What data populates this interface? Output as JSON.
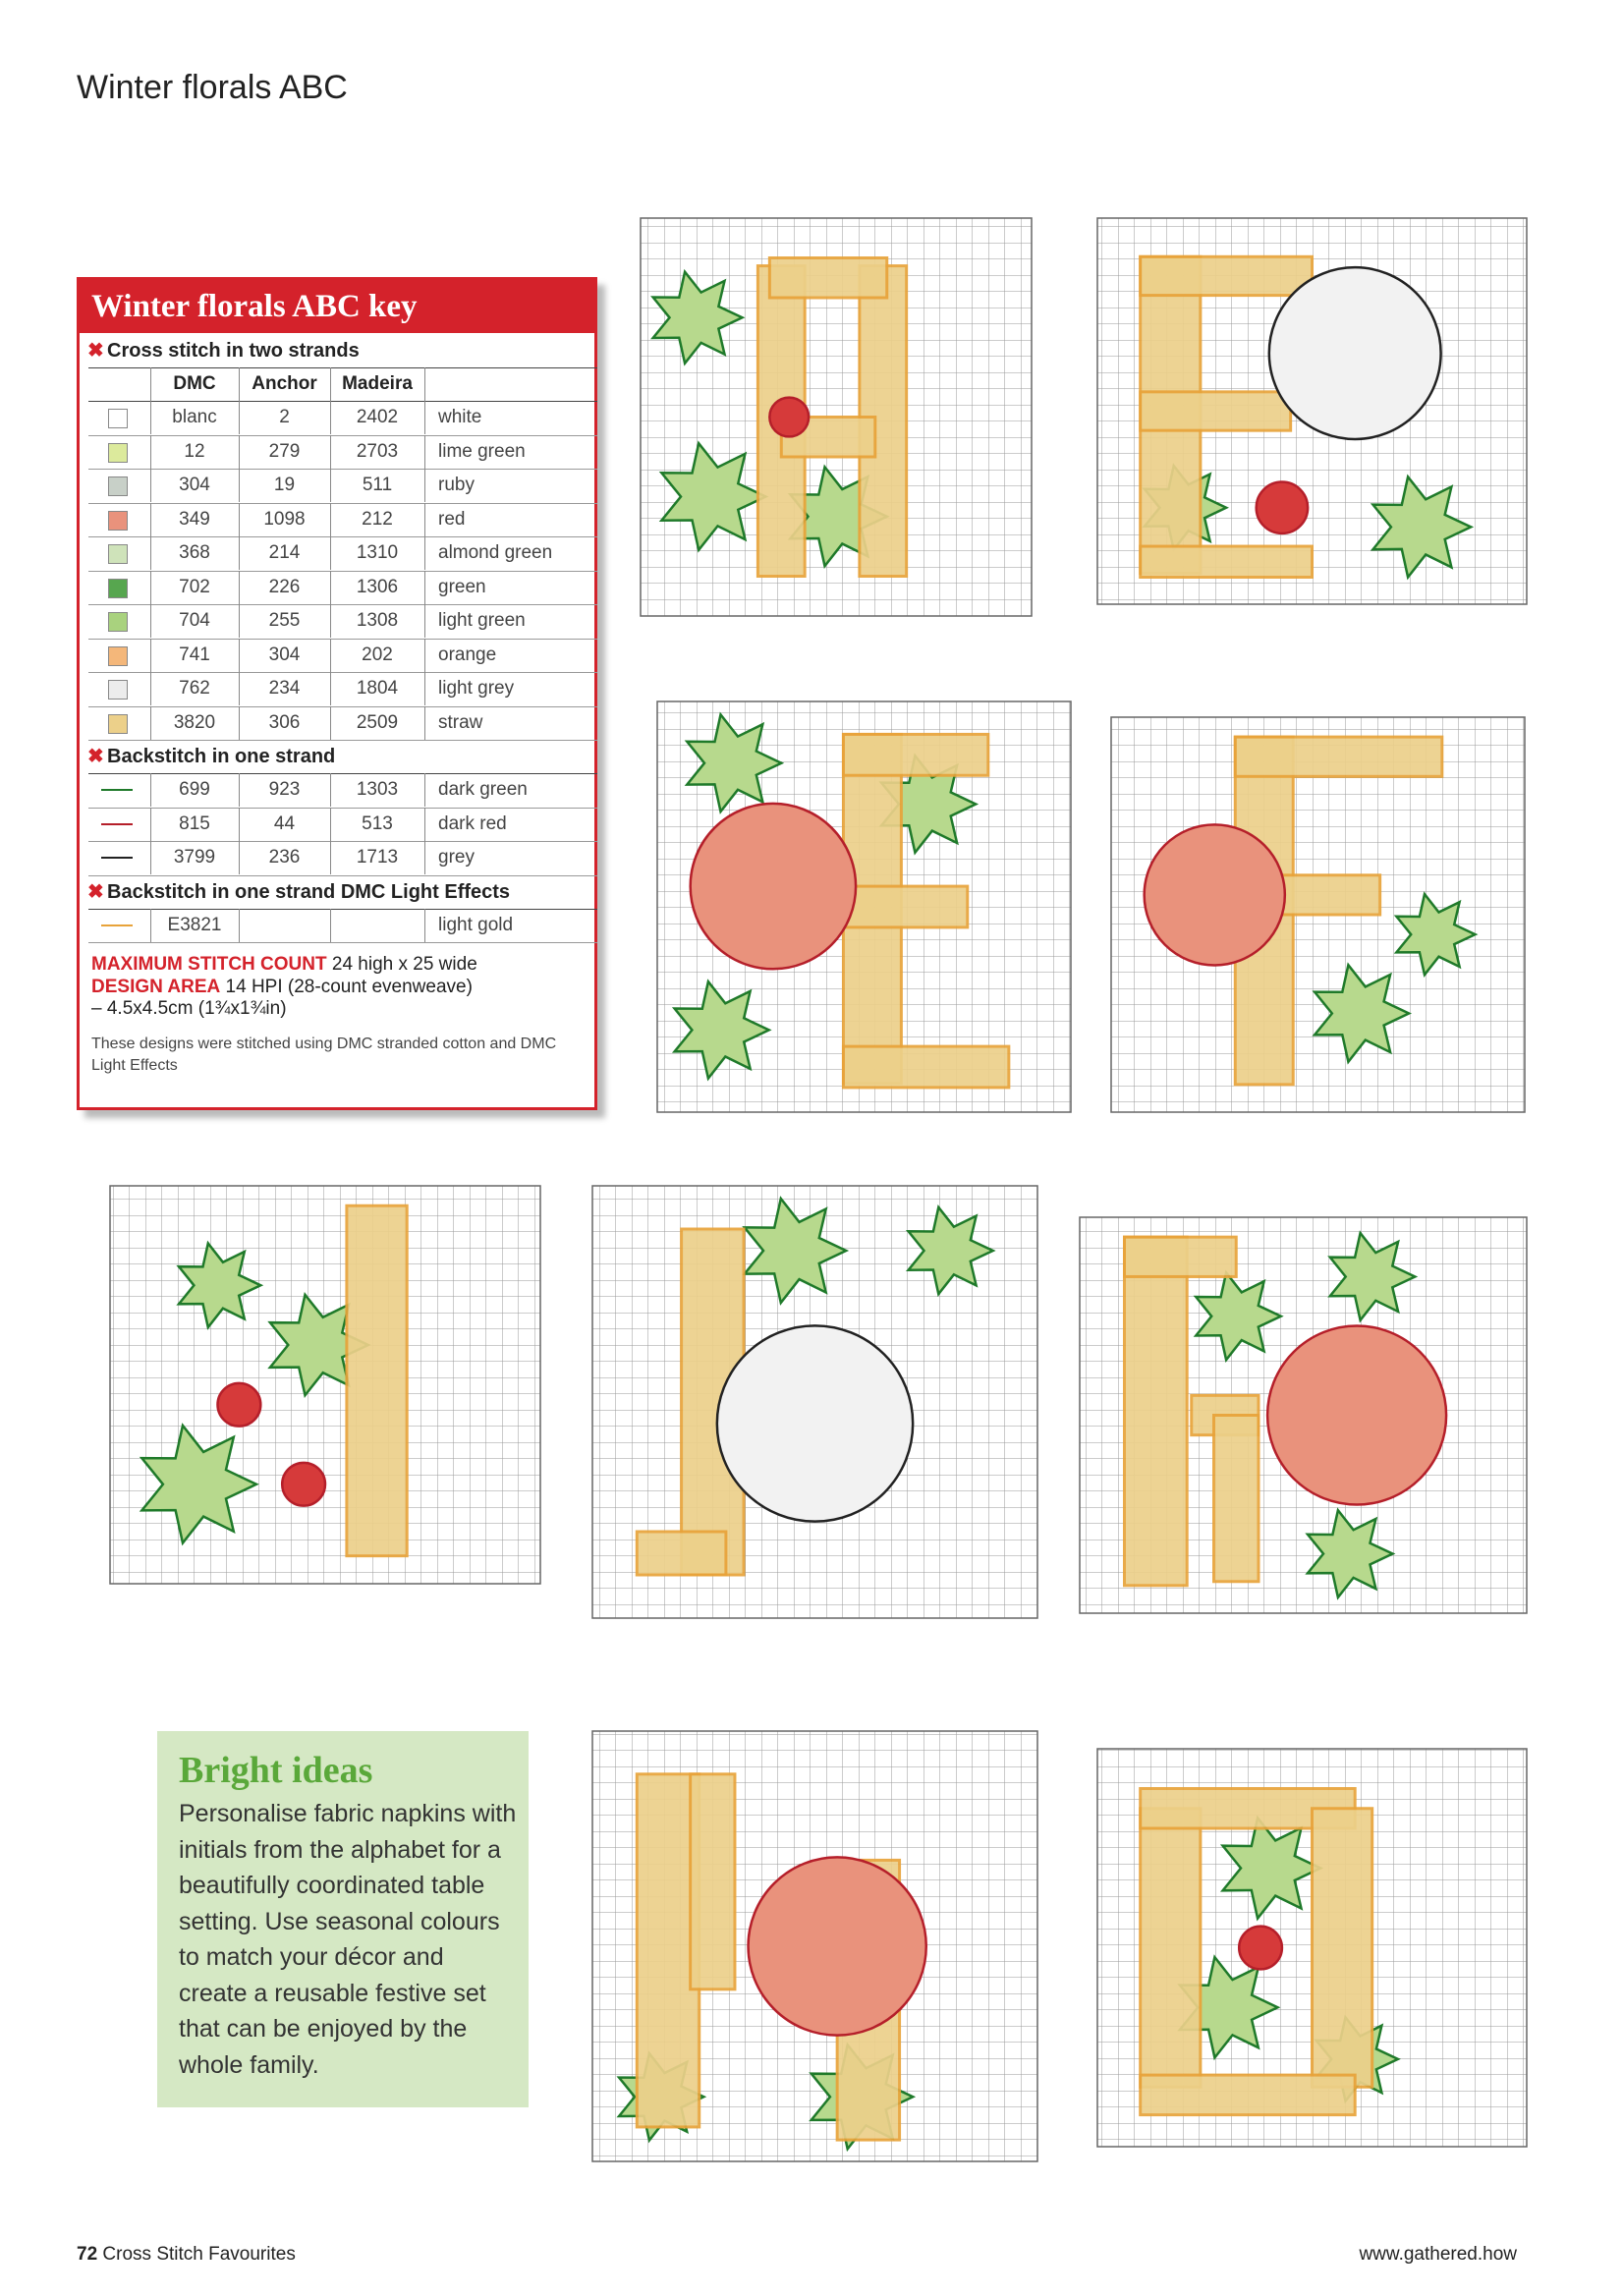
{
  "header": {
    "title": "Winter florals ABC"
  },
  "key": {
    "title": "Winter florals ABC key",
    "columns": [
      "DMC",
      "Anchor",
      "Madeira"
    ],
    "sections": [
      {
        "heading": "Cross stitch in two strands",
        "rows": [
          {
            "dmc": "blanc",
            "anchor": "2",
            "madeira": "2402",
            "name": "white",
            "color": "#ffffff"
          },
          {
            "dmc": "12",
            "anchor": "279",
            "madeira": "2703",
            "name": "lime green",
            "color": "#dcea9c"
          },
          {
            "dmc": "304",
            "anchor": "19",
            "madeira": "511",
            "name": "ruby",
            "color": "#c8d0c8"
          },
          {
            "dmc": "349",
            "anchor": "1098",
            "madeira": "212",
            "name": "red",
            "color": "#e9927c"
          },
          {
            "dmc": "368",
            "anchor": "214",
            "madeira": "1310",
            "name": "almond green",
            "color": "#cfe3ba"
          },
          {
            "dmc": "702",
            "anchor": "226",
            "madeira": "1306",
            "name": "green",
            "color": "#57a64f"
          },
          {
            "dmc": "704",
            "anchor": "255",
            "madeira": "1308",
            "name": "light green",
            "color": "#a9d27e"
          },
          {
            "dmc": "741",
            "anchor": "304",
            "madeira": "202",
            "name": "orange",
            "color": "#f4b77a"
          },
          {
            "dmc": "762",
            "anchor": "234",
            "madeira": "1804",
            "name": "light grey",
            "color": "#ececec"
          },
          {
            "dmc": "3820",
            "anchor": "306",
            "madeira": "2509",
            "name": "straw",
            "color": "#ecd08a"
          }
        ]
      },
      {
        "heading": "Backstitch in one strand",
        "rows": [
          {
            "dmc": "699",
            "anchor": "923",
            "madeira": "1303",
            "name": "dark green",
            "color": "#1f7a2a"
          },
          {
            "dmc": "815",
            "anchor": "44",
            "madeira": "513",
            "name": "dark red",
            "color": "#b51f2a"
          },
          {
            "dmc": "3799",
            "anchor": "236",
            "madeira": "1713",
            "name": "grey",
            "color": "#222222"
          }
        ]
      },
      {
        "heading": "Backstitch in one strand DMC Light Effects",
        "rows": [
          {
            "dmc": "E3821",
            "name": "light gold",
            "color": "#e8a33a"
          }
        ]
      }
    ],
    "stitch_count": {
      "label": "MAXIMUM STITCH COUNT",
      "text": "24 high x 25 wide"
    },
    "design_area": {
      "label": "DESIGN AREA",
      "text": "14 HPI (28-count evenweave)",
      "size": "– 4.5x4.5cm (1¾x1¾in)"
    },
    "note": "These designs were stitched using DMC stranded cotton and DMC Light Effects"
  },
  "bright_ideas": {
    "title": "Bright ideas",
    "body": "Personalise fabric napkins with initials from the alphabet for a beautifully coordinated table setting. Use seasonal colours to match your décor and create a reusable festive set that can be enjoyed by the whole family."
  },
  "footer": {
    "page": "72",
    "publication": "Cross Stitch Favourites",
    "url": "www.gathered.how"
  }
}
